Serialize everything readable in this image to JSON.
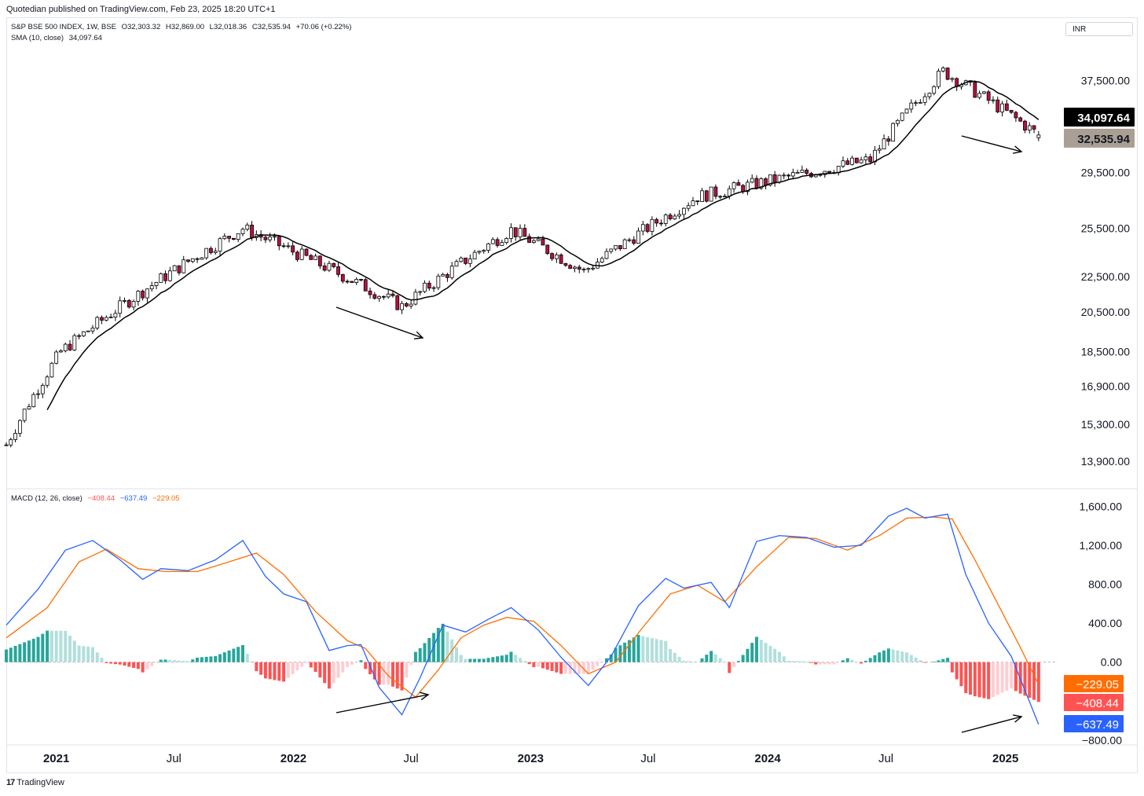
{
  "publisher_line": "Quotedian published on TradingView.com, Feb 23, 2025 18:20 UTC+1",
  "currency": "INR",
  "footer_brand": "TradingView",
  "footer_logo": "17",
  "main_legend": {
    "symbol": "S&P BSE 500 INDEX, 1W, BSE",
    "open": "O32,303.32",
    "high": "H32,869.00",
    "low": "L32,018.36",
    "close": "C32,535.94",
    "change": "+70.06 (+0.22%)",
    "sma_label": "SMA (10, close)",
    "sma_value": "34,097.64"
  },
  "macd_legend": {
    "label": "MACD (12, 26, close)",
    "hist": "−408.44",
    "macd": "−637.49",
    "signal": "−229.05"
  },
  "colors": {
    "up_candle": "#ffffff",
    "down_candle": "#b5123f",
    "sma": "#000000",
    "macd": "#2962ff",
    "signal": "#ff6d00",
    "hist_pos_strong": "#26a69a",
    "hist_pos_weak": "#b2dfdb",
    "hist_neg_strong": "#ff5252",
    "hist_neg_weak": "#ffcdd2"
  },
  "price_badges": [
    {
      "label": "34,097.64",
      "bg": "#000000",
      "fg": "#ffffff"
    },
    {
      "label": "32,535.94",
      "bg": "#aa9f94",
      "fg": "#131722"
    }
  ],
  "macd_badges": [
    {
      "label": "−229.05",
      "bg": "#ff6d00"
    },
    {
      "label": "−408.44",
      "bg": "#ff5252"
    },
    {
      "label": "−637.49",
      "bg": "#2962ff"
    }
  ],
  "chart_data": [
    {
      "type": "candlestick",
      "title": "S&P BSE 500 INDEX, 1W, BSE",
      "scale": "log",
      "ylim": [
        13200,
        40500
      ],
      "y_ticks": [
        13900,
        15300,
        16900,
        18500,
        20500,
        22500,
        25500,
        29500,
        37500
      ],
      "y_tick_labels": [
        "13,900.00",
        "15,300.00",
        "16,900.00",
        "18,500.00",
        "20,500.00",
        "22,500.00",
        "25,500.00",
        "29,500.00",
        "37,500.00"
      ],
      "x_tick_labels": [
        "2021",
        "Jul",
        "2022",
        "Jul",
        "2023",
        "Jul",
        "2024",
        "Jul",
        "2025"
      ],
      "x_range": [
        "2020-10-16",
        "2025-03-21"
      ],
      "key_points": [
        {
          "date": "2020-10-16",
          "close": 14500
        },
        {
          "date": "2021-01-08",
          "close": 18500
        },
        {
          "date": "2021-10-15",
          "close": 25500
        },
        {
          "date": "2022-06-17",
          "close": 20800
        },
        {
          "date": "2022-12-02",
          "close": 25400
        },
        {
          "date": "2023-03-24",
          "close": 22800
        },
        {
          "date": "2023-09-15",
          "close": 27700
        },
        {
          "date": "2024-06-07",
          "close": 30500
        },
        {
          "date": "2024-09-27",
          "close": 38400
        },
        {
          "date": "2025-02-21",
          "close": 32535.94
        }
      ],
      "series": [
        {
          "name": "SMA (10, close)",
          "last": 34097.64
        }
      ],
      "annotations": [
        "arrow 2022-02 to 2022-07 (lower lows)",
        "arrow 2025-01 to 2025-03 (lower lows)"
      ]
    },
    {
      "type": "line",
      "title": "MACD (12, 26, close)",
      "ylim": [
        -850,
        1700
      ],
      "y_ticks": [
        -800,
        0,
        400,
        800,
        1200,
        1600
      ],
      "y_tick_labels": [
        "−800.00",
        "0.00",
        "400.00",
        "800.00",
        "1,200.00",
        "1,600.00"
      ],
      "x_range": [
        "2020-10-16",
        "2025-03-21"
      ],
      "series": [
        {
          "name": "MACD",
          "points": [
            [
              "2020-10-16",
              380
            ],
            [
              "2020-12-04",
              750
            ],
            [
              "2021-01-15",
              1150
            ],
            [
              "2021-02-26",
              1250
            ],
            [
              "2021-04-09",
              1050
            ],
            [
              "2021-05-14",
              850
            ],
            [
              "2021-06-11",
              960
            ],
            [
              "2021-07-23",
              940
            ],
            [
              "2021-09-03",
              1050
            ],
            [
              "2021-10-15",
              1250
            ],
            [
              "2021-11-19",
              880
            ],
            [
              "2021-12-17",
              700
            ],
            [
              "2022-01-21",
              620
            ],
            [
              "2022-02-25",
              120
            ],
            [
              "2022-03-25",
              170
            ],
            [
              "2022-04-15",
              180
            ],
            [
              "2022-05-13",
              -260
            ],
            [
              "2022-06-17",
              -540
            ],
            [
              "2022-07-15",
              -160
            ],
            [
              "2022-08-19",
              380
            ],
            [
              "2022-09-23",
              310
            ],
            [
              "2022-10-28",
              440
            ],
            [
              "2022-12-02",
              560
            ],
            [
              "2023-01-13",
              330
            ],
            [
              "2023-02-17",
              50
            ],
            [
              "2023-03-31",
              -240
            ],
            [
              "2023-05-05",
              60
            ],
            [
              "2023-06-16",
              580
            ],
            [
              "2023-07-28",
              860
            ],
            [
              "2023-08-25",
              760
            ],
            [
              "2023-10-06",
              820
            ],
            [
              "2023-11-03",
              560
            ],
            [
              "2023-12-15",
              1240
            ],
            [
              "2024-01-19",
              1300
            ],
            [
              "2024-03-01",
              1280
            ],
            [
              "2024-04-12",
              1180
            ],
            [
              "2024-05-24",
              1200
            ],
            [
              "2024-07-05",
              1500
            ],
            [
              "2024-08-02",
              1580
            ],
            [
              "2024-08-30",
              1480
            ],
            [
              "2024-10-04",
              1520
            ],
            [
              "2024-11-01",
              900
            ],
            [
              "2024-12-06",
              400
            ],
            [
              "2025-01-10",
              60
            ],
            [
              "2025-02-21",
              -637.49
            ]
          ]
        },
        {
          "name": "Signal",
          "points": [
            [
              "2020-10-16",
              250
            ],
            [
              "2020-12-18",
              560
            ],
            [
              "2021-02-05",
              1030
            ],
            [
              "2021-03-19",
              1160
            ],
            [
              "2021-05-07",
              960
            ],
            [
              "2021-06-18",
              930
            ],
            [
              "2021-08-06",
              930
            ],
            [
              "2021-09-24",
              1030
            ],
            [
              "2021-11-05",
              1120
            ],
            [
              "2021-12-17",
              900
            ],
            [
              "2022-02-04",
              520
            ],
            [
              "2022-03-25",
              220
            ],
            [
              "2022-04-22",
              140
            ],
            [
              "2022-05-27",
              -140
            ],
            [
              "2022-07-08",
              -360
            ],
            [
              "2022-08-12",
              -80
            ],
            [
              "2022-09-16",
              250
            ],
            [
              "2022-10-21",
              380
            ],
            [
              "2022-11-25",
              460
            ],
            [
              "2023-01-06",
              420
            ],
            [
              "2023-02-17",
              170
            ],
            [
              "2023-03-31",
              -120
            ],
            [
              "2023-05-12",
              0
            ],
            [
              "2023-06-23",
              360
            ],
            [
              "2023-08-04",
              700
            ],
            [
              "2023-09-15",
              790
            ],
            [
              "2023-10-27",
              620
            ],
            [
              "2023-12-15",
              980
            ],
            [
              "2024-02-02",
              1280
            ],
            [
              "2024-03-15",
              1270
            ],
            [
              "2024-05-03",
              1150
            ],
            [
              "2024-06-21",
              1300
            ],
            [
              "2024-08-02",
              1480
            ],
            [
              "2024-09-13",
              1490
            ],
            [
              "2024-10-11",
              1470
            ],
            [
              "2024-11-15",
              1050
            ],
            [
              "2024-12-20",
              600
            ],
            [
              "2025-01-24",
              150
            ],
            [
              "2025-02-21",
              -229.05
            ]
          ]
        },
        {
          "name": "Histogram",
          "last": -408.44
        }
      ],
      "annotations": [
        "arrow 2022-02 to 2022-07 (higher lows)",
        "arrow 2025-01 to 2025-03 (higher lows)"
      ]
    }
  ]
}
